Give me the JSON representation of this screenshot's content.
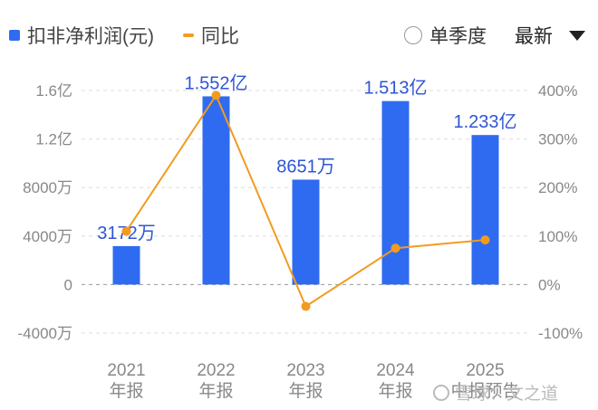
{
  "legend": {
    "bar_label": "扣非净利润(元)",
    "line_label": "同比"
  },
  "controls": {
    "quarterly_label": "单季度",
    "dropdown_value": "最新"
  },
  "watermark": "雪球：文之道",
  "colors": {
    "bar": "#2f6bf0",
    "line": "#f29b20",
    "data_label": "#2f55d4"
  },
  "chart_data": {
    "type": "bar",
    "categories": [
      "2021",
      "2022",
      "2023",
      "2024",
      "2025"
    ],
    "category_sublabels": [
      "年报",
      "年报",
      "年报",
      "年报",
      "中报预告"
    ],
    "series": [
      {
        "name": "扣非净利润(元)",
        "type": "bar",
        "values": [
          31720000,
          155200000,
          86510000,
          151300000,
          123300000
        ],
        "labels": [
          "3172万",
          "1.552亿",
          "8651万",
          "1.513亿",
          "1.233亿"
        ]
      },
      {
        "name": "同比",
        "type": "line",
        "axis": "right",
        "values": [
          110,
          390,
          -45,
          75,
          92
        ]
      }
    ],
    "left_axis": {
      "ticks": [
        "1.6亿",
        "1.2亿",
        "8000万",
        "4000万",
        "0",
        "-4000万"
      ],
      "tick_values": [
        160000000,
        120000000,
        80000000,
        40000000,
        0,
        -40000000
      ],
      "ylim": [
        -40000000,
        160000000
      ]
    },
    "right_axis": {
      "ticks": [
        "400%",
        "300%",
        "200%",
        "100%",
        "0%",
        "-100%"
      ],
      "tick_values": [
        400,
        300,
        200,
        100,
        0,
        -100
      ],
      "ylim": [
        -100,
        400
      ]
    },
    "grid": true,
    "legend_position": "top-left"
  }
}
